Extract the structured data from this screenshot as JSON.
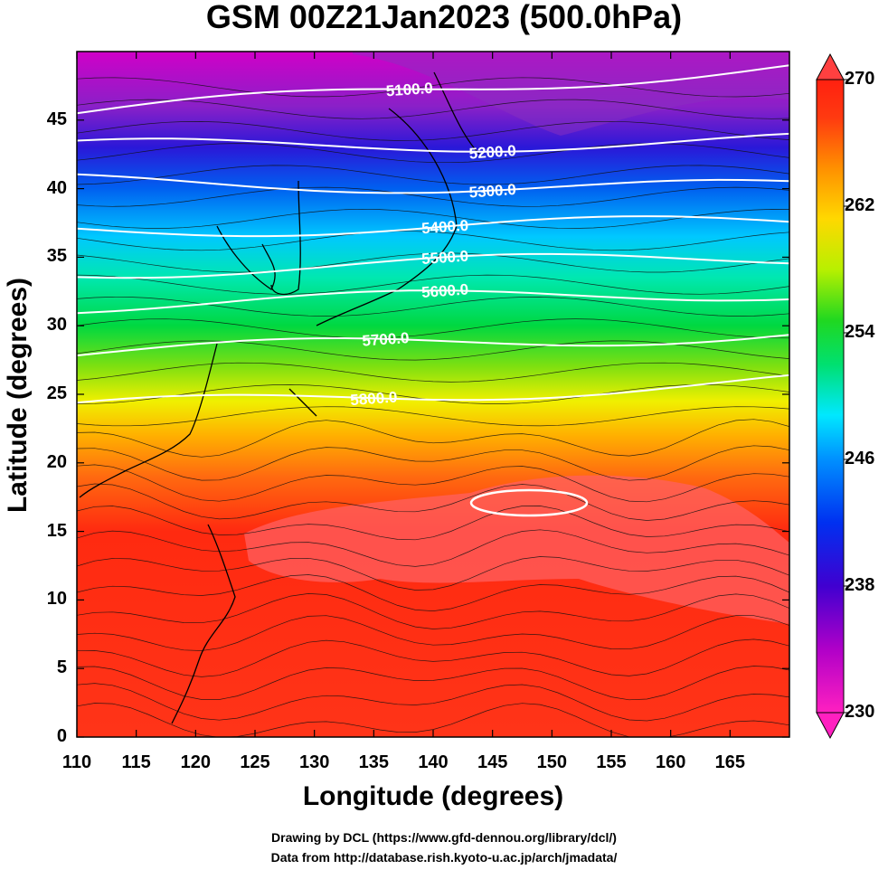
{
  "title": "GSM 00Z21Jan2023 (500.0hPa)",
  "xlabel": "Longitude (degrees)",
  "ylabel": "Latitude  (degrees)",
  "credit_line1": "Drawing by DCL (https://www.gfd-dennou.org/library/dcl/)",
  "credit_line2": "Data from http://database.rish.kyoto-u.ac.jp/arch/jmadata/",
  "map": {
    "lon_range": [
      110,
      170
    ],
    "lat_range": [
      0,
      50
    ],
    "lon_ticks": [
      "110",
      "115",
      "120",
      "125",
      "130",
      "135",
      "140",
      "145",
      "150",
      "155",
      "160",
      "165"
    ],
    "lat_ticks": [
      "0",
      "5",
      "10",
      "15",
      "20",
      "25",
      "30",
      "35",
      "40",
      "45"
    ],
    "shading_variable": "temperature",
    "colorbar": {
      "min": 230,
      "max": 270,
      "labels": [
        "270",
        "262",
        "254",
        "246",
        "238",
        "230"
      ],
      "colors": [
        "#ff1493",
        "#b000c8",
        "#4a00d0",
        "#0018e8",
        "#0070ff",
        "#00c8ff",
        "#00f0c0",
        "#00e040",
        "#40e010",
        "#b8f000",
        "#ffe000",
        "#ffa000",
        "#ff6010",
        "#ff2000",
        "#ff3a3a"
      ]
    },
    "contours": [
      {
        "label": "5100.0",
        "lat_at_west": 45.5,
        "lat_at_east": 49.0
      },
      {
        "label": "5200.0",
        "lat_at_west": 43.0,
        "lat_at_east": 43.5
      },
      {
        "label": "5300.0",
        "lat_at_west": 40.5,
        "lat_at_east": 40.0
      },
      {
        "label": "5400.0",
        "lat_at_west": 37.0,
        "lat_at_east": 37.5
      },
      {
        "label": "5500.0",
        "lat_at_west": 34.0,
        "lat_at_east": 35.0
      },
      {
        "label": "5600.0",
        "lat_at_west": 31.5,
        "lat_at_east": 32.5
      },
      {
        "label": "5700.0",
        "lat_at_west": 28.0,
        "lat_at_east": 29.5
      },
      {
        "label": "5800.0",
        "lat_at_west": 24.0,
        "lat_at_east": 26.0
      }
    ],
    "closed_contour_center": {
      "lon": 149,
      "lat": 19.5
    }
  }
}
